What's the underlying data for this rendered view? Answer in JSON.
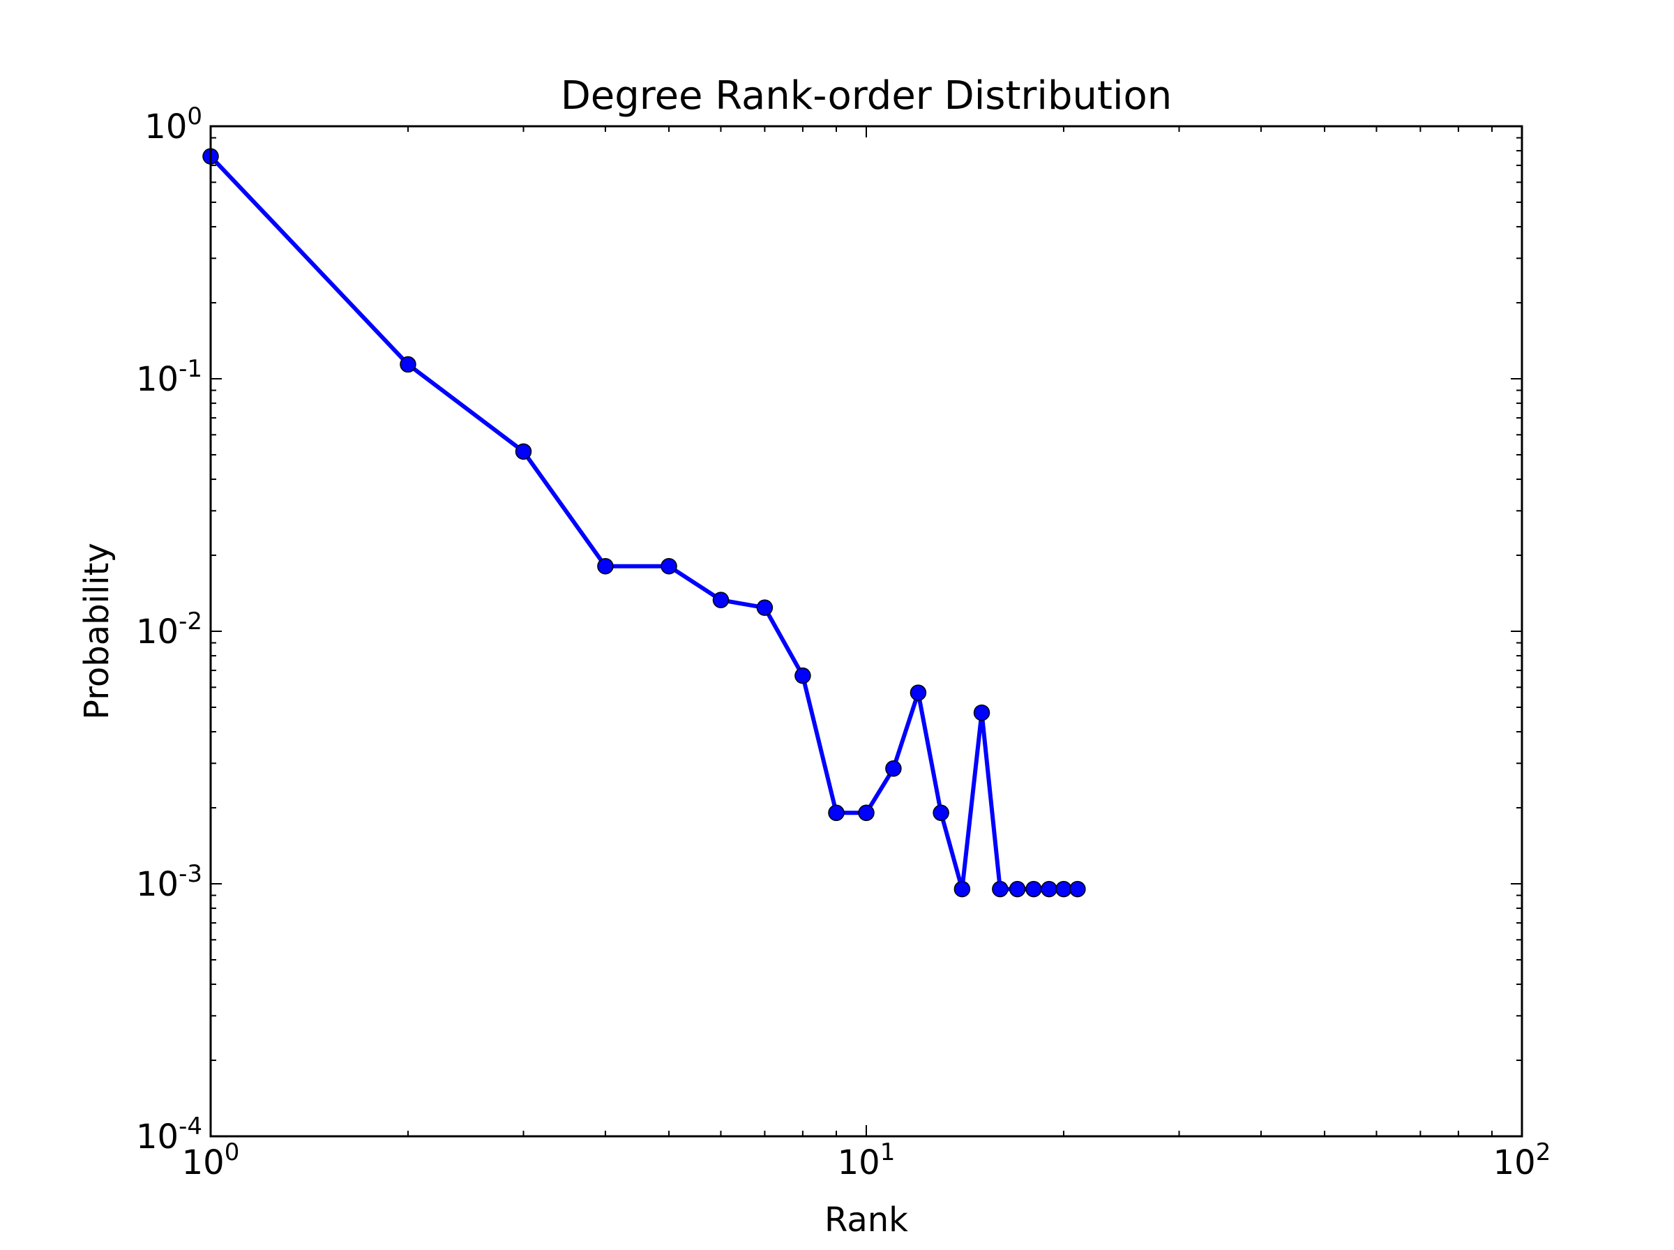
{
  "chart_data": {
    "type": "line",
    "title": "Degree Rank-order Distribution",
    "xlabel": "Rank",
    "ylabel": "Probability",
    "xscale": "log",
    "yscale": "log",
    "xlim": [
      1,
      100
    ],
    "ylim": [
      0.0001,
      1
    ],
    "grid": false,
    "legend": "none",
    "x_ticks": [
      {
        "value": 1,
        "base": "10",
        "exp": "0"
      },
      {
        "value": 10,
        "base": "10",
        "exp": "1"
      },
      {
        "value": 100,
        "base": "10",
        "exp": "2"
      }
    ],
    "y_ticks": [
      {
        "value": 1,
        "base": "10",
        "exp": "0"
      },
      {
        "value": 0.1,
        "base": "10",
        "exp": "-1"
      },
      {
        "value": 0.01,
        "base": "10",
        "exp": "-2"
      },
      {
        "value": 0.001,
        "base": "10",
        "exp": "-3"
      },
      {
        "value": 0.0001,
        "base": "10",
        "exp": "-4"
      }
    ],
    "series": [
      {
        "color": "#0000ff",
        "marker": "circle",
        "x": [
          1,
          2,
          3,
          4,
          5,
          6,
          7,
          8,
          9,
          10,
          11,
          12,
          13,
          14,
          15,
          16,
          17,
          18,
          19,
          20,
          21
        ],
        "y": [
          0.76,
          0.114,
          0.0515,
          0.0181,
          0.0181,
          0.0133,
          0.0124,
          0.00667,
          0.00191,
          0.00191,
          0.00286,
          0.00571,
          0.00191,
          0.000953,
          0.00476,
          0.000953,
          0.000953,
          0.000953,
          0.000953,
          0.000953,
          0.000953
        ]
      }
    ]
  }
}
